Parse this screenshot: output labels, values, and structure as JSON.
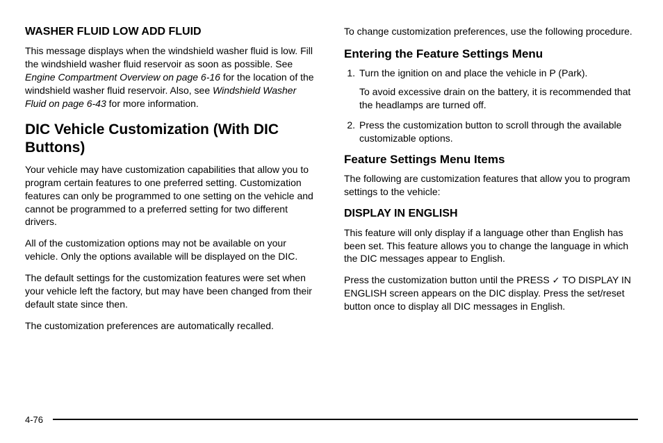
{
  "left": {
    "section1_title": "WASHER FLUID LOW ADD FLUID",
    "section1_para_pre": "This message displays when the windshield washer fluid is low. Fill the windshield washer fluid reservoir as soon as possible. See ",
    "section1_ref1": "Engine Compartment Overview on page 6‑16",
    "section1_mid": " for the location of the windshield washer fluid reservoir. Also, see ",
    "section1_ref2": "Windshield Washer Fluid on page 6‑43",
    "section1_post": " for more information.",
    "section2_title": "DIC Vehicle Customization (With DIC Buttons)",
    "section2_p1": "Your vehicle may have customization capabilities that allow you to program certain features to one preferred setting. Customization features can only be programmed to one setting on the vehicle and cannot be programmed to a preferred setting for two different drivers.",
    "section2_p2": "All of the customization options may not be available on your vehicle. Only the options available will be displayed on the DIC.",
    "section2_p3": "The default settings for the customization features were set when your vehicle left the factory, but may have been changed from their default state since then.",
    "section2_p4": "The customization preferences are automatically recalled."
  },
  "right": {
    "intro": "To change customization preferences, use the following procedure.",
    "entering_title": "Entering the Feature Settings Menu",
    "steps": [
      {
        "num": "1.",
        "lines": [
          "Turn the ignition on and place the vehicle in P (Park).",
          "To avoid excessive drain on the battery, it is recommended that the headlamps are turned off."
        ]
      },
      {
        "num": "2.",
        "lines": [
          "Press the customization button to scroll through the available customizable options."
        ]
      }
    ],
    "menu_items_title": "Feature Settings Menu Items",
    "menu_items_intro": "The following are customization features that allow you to program settings to the vehicle:",
    "display_title": "DISPLAY IN ENGLISH",
    "display_p1": "This feature will only display if a language other than English has been set. This feature allows you to change the language in which the DIC messages appear to English.",
    "display_p2_pre": "Press the customization button until the PRESS ",
    "display_p2_check": "✓",
    "display_p2_post": " TO DISPLAY IN ENGLISH screen appears on the DIC display. Press the set/reset button once to display all DIC messages in English."
  },
  "page_number": "4-76"
}
